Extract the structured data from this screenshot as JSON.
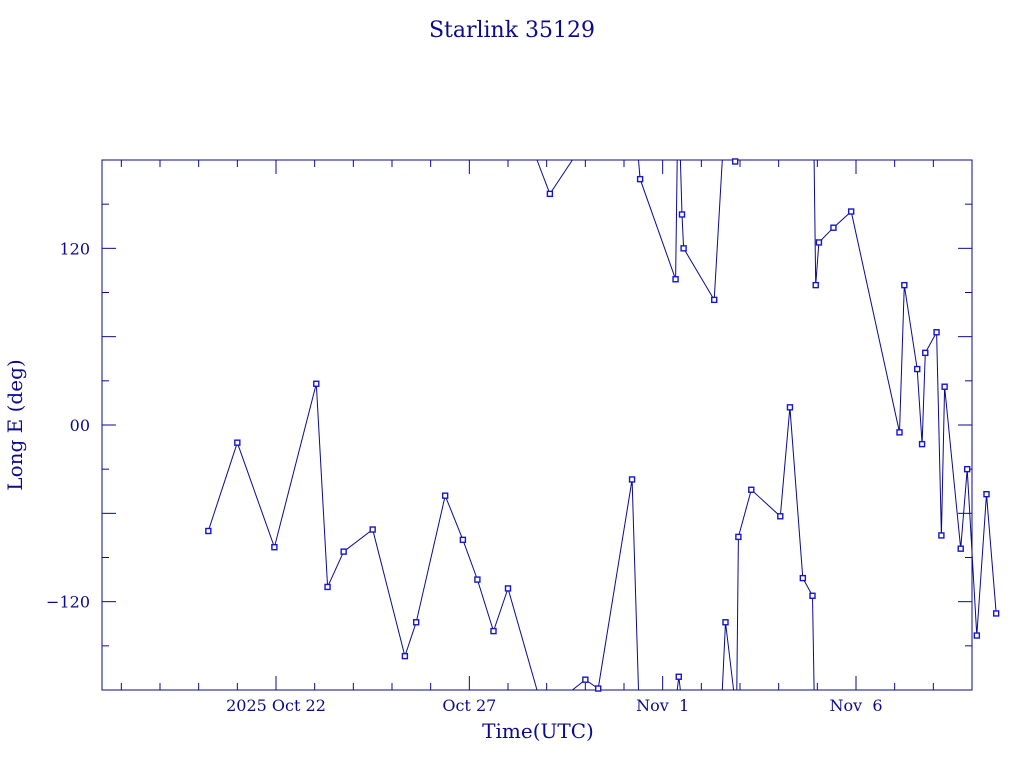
{
  "chart_data": {
    "type": "line",
    "title": "Starlink 35129",
    "xlabel": "Time(UTC)",
    "ylabel": "Long E (deg)",
    "x_start": "2025-10-17T12:00",
    "x_end": "2025-11-09T00:00",
    "ylim": [
      -180,
      180
    ],
    "x_ticks": [
      {
        "date": "2025-10-22T00:00",
        "label": "2025 Oct 22"
      },
      {
        "date": "2025-10-27T00:00",
        "label": "Oct 27"
      },
      {
        "date": "2025-11-01T00:00",
        "label": "Nov  1"
      },
      {
        "date": "2025-11-06T00:00",
        "label": "Nov  6"
      }
    ],
    "y_ticks": [
      {
        "value": -120,
        "label": "−120"
      },
      {
        "value": 0,
        "label": "00"
      },
      {
        "value": 120,
        "label": "120"
      }
    ],
    "color": "#0a0a8c",
    "marker_color": "#1515d0",
    "series": [
      {
        "values": [
          [
            "2025-10-20T06:00",
            -72
          ],
          [
            "2025-10-21T00:00",
            -12
          ],
          [
            "2025-10-21T23:00",
            -83
          ],
          [
            "2025-10-23T01:00",
            28
          ],
          [
            "2025-10-23T08:00",
            -110
          ],
          [
            "2025-10-23T18:00",
            -86
          ],
          [
            "2025-10-24T12:00",
            -71
          ],
          [
            "2025-10-25T08:00",
            -157
          ],
          [
            "2025-10-25T15:00",
            -134
          ],
          [
            "2025-10-26T09:00",
            -48
          ],
          [
            "2025-10-26T20:00",
            -78
          ],
          [
            "2025-10-27T05:00",
            -105
          ],
          [
            "2025-10-27T15:00",
            -140
          ],
          [
            "2025-10-28T00:00",
            -111
          ],
          [
            "2025-10-28T18:00",
            -180
          ]
        ]
      },
      {
        "values": [
          [
            "2025-10-28T18:00",
            180
          ],
          [
            "2025-10-29T02:00",
            157
          ],
          [
            "2025-10-29T16:00",
            180
          ]
        ]
      },
      {
        "values": [
          [
            "2025-10-29T16:00",
            -180
          ],
          [
            "2025-10-30T00:00",
            -173
          ],
          [
            "2025-10-30T08:00",
            -179
          ],
          [
            "2025-10-31T05:00",
            -37
          ],
          [
            "2025-10-31T09:00",
            -180
          ]
        ]
      },
      {
        "values": [
          [
            "2025-10-31T09:00",
            180
          ],
          [
            "2025-10-31T10:00",
            167
          ],
          [
            "2025-11-01T08:00",
            99
          ],
          [
            "2025-11-01T09:00",
            180
          ]
        ]
      },
      {
        "values": [
          [
            "2025-11-01T09:00",
            -180
          ],
          [
            "2025-11-01T10:00",
            -171
          ],
          [
            "2025-11-01T11:00",
            -180
          ]
        ]
      },
      {
        "values": [
          [
            "2025-11-01T11:00",
            180
          ],
          [
            "2025-11-01T12:00",
            143
          ],
          [
            "2025-11-01T13:00",
            120
          ],
          [
            "2025-11-02T08:00",
            85
          ],
          [
            "2025-11-02T13:00",
            180
          ]
        ]
      },
      {
        "values": [
          [
            "2025-11-02T13:00",
            -180
          ],
          [
            "2025-11-02T15:00",
            -134
          ],
          [
            "2025-11-02T20:00",
            -180
          ]
        ]
      },
      {
        "values": [
          [
            "2025-11-02T20:00",
            180
          ],
          [
            "2025-11-02T21:00",
            179
          ],
          [
            "2025-11-02T22:00",
            180
          ]
        ]
      },
      {
        "values": [
          [
            "2025-11-02T22:00",
            -180
          ],
          [
            "2025-11-02T23:00",
            -76
          ],
          [
            "2025-11-03T07:00",
            -44
          ],
          [
            "2025-11-04T01:00",
            -62
          ],
          [
            "2025-11-04T07:00",
            12
          ],
          [
            "2025-11-04T15:00",
            -104
          ],
          [
            "2025-11-04T21:00",
            -116
          ],
          [
            "2025-11-04T22:00",
            -180
          ]
        ]
      },
      {
        "values": [
          [
            "2025-11-04T22:00",
            180
          ],
          [
            "2025-11-04T23:00",
            95
          ],
          [
            "2025-11-05T01:00",
            124
          ],
          [
            "2025-11-05T10:00",
            134
          ],
          [
            "2025-11-05T21:00",
            145
          ],
          [
            "2025-11-07T03:00",
            -5
          ],
          [
            "2025-11-07T06:00",
            95
          ],
          [
            "2025-11-07T14:00",
            38
          ],
          [
            "2025-11-07T17:00",
            -13
          ],
          [
            "2025-11-07T19:00",
            49
          ],
          [
            "2025-11-08T02:00",
            63
          ],
          [
            "2025-11-08T05:00",
            -75
          ],
          [
            "2025-11-08T07:00",
            26
          ],
          [
            "2025-11-08T17:00",
            -84
          ],
          [
            "2025-11-08T21:00",
            -30
          ],
          [
            "2025-11-09T03:00",
            -143
          ],
          [
            "2025-11-09T09:00",
            -47
          ],
          [
            "2025-11-09T15:00",
            -128
          ]
        ]
      }
    ]
  }
}
